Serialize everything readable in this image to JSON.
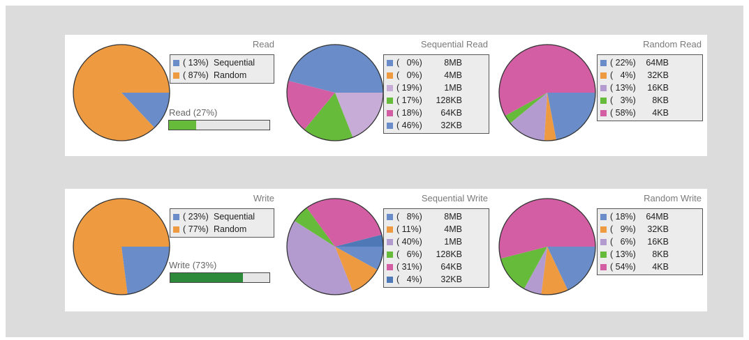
{
  "colors": {
    "blue": "#6a8dca",
    "orange": "#ee9a40",
    "lilac": "#c6acd6",
    "green": "#66bb3a",
    "pink": "#d45ea4",
    "steel": "#4f79b6",
    "lavender": "#b39bd0",
    "bar_read": "#66bb3a",
    "bar_write": "#2c8a3a"
  },
  "rows": [
    {
      "bar": {
        "label": "Read (27%)",
        "value": 0.27,
        "color_key": "bar_read"
      },
      "charts": [
        {
          "title": "Read",
          "pie_start_deg": 90,
          "slices": [
            {
              "pct": "( 13%)",
              "label": "Sequential",
              "value": 13,
              "color_key": "blue"
            },
            {
              "pct": "( 87%)",
              "label": "Random",
              "value": 87,
              "color_key": "orange"
            }
          ]
        },
        {
          "title": "Sequential Read",
          "pie_start_deg": 90,
          "slices": [
            {
              "pct": "(   0%)",
              "label": "8MB",
              "value": 0,
              "color_key": "blue"
            },
            {
              "pct": "(   0%)",
              "label": "4MB",
              "value": 0,
              "color_key": "orange"
            },
            {
              "pct": "( 19%)",
              "label": "1MB",
              "value": 19,
              "color_key": "lilac"
            },
            {
              "pct": "( 17%)",
              "label": "128KB",
              "value": 17,
              "color_key": "green"
            },
            {
              "pct": "( 18%)",
              "label": "64KB",
              "value": 18,
              "color_key": "pink"
            },
            {
              "pct": "( 46%)",
              "label": "32KB",
              "value": 46,
              "color_key": "blue"
            }
          ]
        },
        {
          "title": "Random Read",
          "pie_start_deg": 90,
          "slices": [
            {
              "pct": "( 22%)",
              "label": "64MB",
              "value": 22,
              "color_key": "blue"
            },
            {
              "pct": "(   4%)",
              "label": "32KB",
              "value": 4,
              "color_key": "orange"
            },
            {
              "pct": "( 13%)",
              "label": "16KB",
              "value": 13,
              "color_key": "lavender"
            },
            {
              "pct": "(   3%)",
              "label": "8KB",
              "value": 3,
              "color_key": "green"
            },
            {
              "pct": "( 58%)",
              "label": "4KB",
              "value": 58,
              "color_key": "pink"
            }
          ]
        }
      ]
    },
    {
      "bar": {
        "label": "Write (73%)",
        "value": 0.73,
        "color_key": "bar_write"
      },
      "charts": [
        {
          "title": "Write",
          "pie_start_deg": 90,
          "slices": [
            {
              "pct": "( 23%)",
              "label": "Sequential",
              "value": 23,
              "color_key": "blue"
            },
            {
              "pct": "( 77%)",
              "label": "Random",
              "value": 77,
              "color_key": "orange"
            }
          ]
        },
        {
          "title": "Sequential Write",
          "pie_start_deg": 90,
          "slices": [
            {
              "pct": "(   8%)",
              "label": "8MB",
              "value": 8,
              "color_key": "blue"
            },
            {
              "pct": "( 11%)",
              "label": "4MB",
              "value": 11,
              "color_key": "orange"
            },
            {
              "pct": "( 40%)",
              "label": "1MB",
              "value": 40,
              "color_key": "lavender"
            },
            {
              "pct": "(   6%)",
              "label": "128KB",
              "value": 6,
              "color_key": "green"
            },
            {
              "pct": "( 31%)",
              "label": "64KB",
              "value": 31,
              "color_key": "pink"
            },
            {
              "pct": "(   4%)",
              "label": "32KB",
              "value": 4,
              "color_key": "steel"
            }
          ]
        },
        {
          "title": "Random Write",
          "pie_start_deg": 90,
          "slices": [
            {
              "pct": "( 18%)",
              "label": "64MB",
              "value": 18,
              "color_key": "blue"
            },
            {
              "pct": "(   9%)",
              "label": "32KB",
              "value": 9,
              "color_key": "orange"
            },
            {
              "pct": "(   6%)",
              "label": "16KB",
              "value": 6,
              "color_key": "lavender"
            },
            {
              "pct": "( 13%)",
              "label": "8KB",
              "value": 13,
              "color_key": "green"
            },
            {
              "pct": "( 54%)",
              "label": "4KB",
              "value": 54,
              "color_key": "pink"
            }
          ]
        }
      ]
    }
  ],
  "chart_data": [
    {
      "type": "pie",
      "title": "Read",
      "categories": [
        "Sequential",
        "Random"
      ],
      "values": [
        13,
        87
      ]
    },
    {
      "type": "pie",
      "title": "Sequential Read",
      "categories": [
        "8MB",
        "4MB",
        "1MB",
        "128KB",
        "64KB",
        "32KB"
      ],
      "values": [
        0,
        0,
        19,
        17,
        18,
        46
      ]
    },
    {
      "type": "pie",
      "title": "Random Read",
      "categories": [
        "64MB",
        "32KB",
        "16KB",
        "8KB",
        "4KB"
      ],
      "values": [
        22,
        4,
        13,
        3,
        58
      ]
    },
    {
      "type": "pie",
      "title": "Write",
      "categories": [
        "Sequential",
        "Random"
      ],
      "values": [
        23,
        77
      ]
    },
    {
      "type": "pie",
      "title": "Sequential Write",
      "categories": [
        "8MB",
        "4MB",
        "1MB",
        "128KB",
        "64KB",
        "32KB"
      ],
      "values": [
        8,
        11,
        40,
        6,
        31,
        4
      ]
    },
    {
      "type": "pie",
      "title": "Random Write",
      "categories": [
        "64MB",
        "32KB",
        "16KB",
        "8KB",
        "4KB"
      ],
      "values": [
        18,
        9,
        6,
        13,
        54
      ]
    },
    {
      "type": "bar",
      "categories": [
        "Read (27%)",
        "Write (73%)"
      ],
      "values": [
        27,
        73
      ]
    }
  ]
}
